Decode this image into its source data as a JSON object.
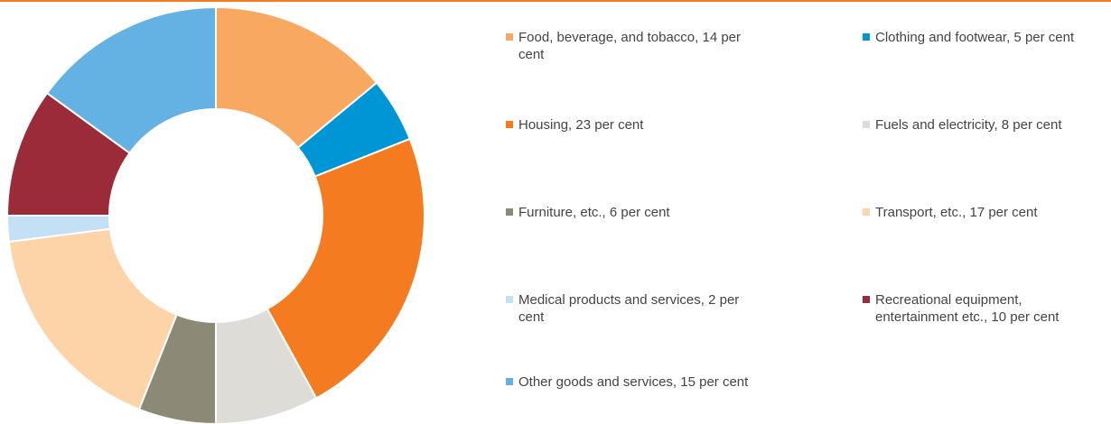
{
  "chart_data": {
    "type": "pie",
    "categories": [
      "Food, beverage, and tobacco, 14 per cent",
      "Clothing and footwear, 5 per cent",
      "Housing, 23 per cent",
      "Fuels and electricity, 8 per cent",
      "Furniture, etc., 6 per cent",
      "Transport, etc., 17 per cent",
      "Medical products and services, 2 per cent",
      "Recreational equipment, entertainment etc., 10 per cent",
      "Other goods and services, 15 per cent"
    ],
    "values": [
      14,
      5,
      23,
      8,
      6,
      17,
      2,
      10,
      15
    ],
    "colors": [
      "#f9a862",
      "#0096d6",
      "#f47b20",
      "#dedcd6",
      "#8c8a76",
      "#fdd3a8",
      "#c4e0f5",
      "#9c2b3a",
      "#64b1e3"
    ],
    "legend": "right"
  }
}
